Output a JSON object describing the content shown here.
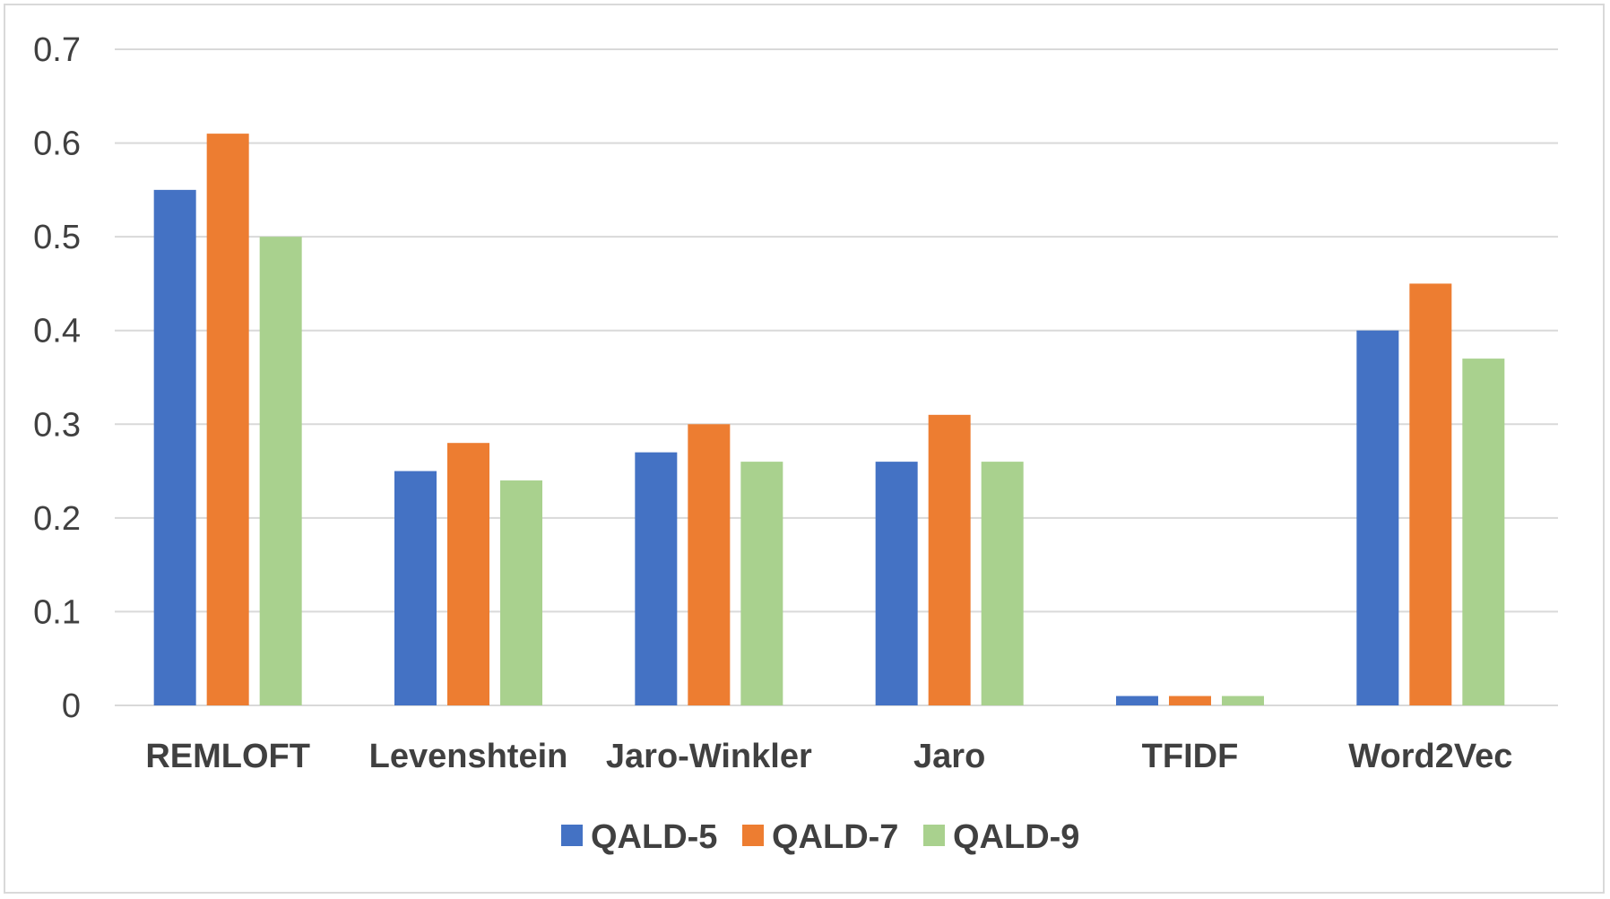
{
  "chart_data": {
    "type": "bar",
    "title": "",
    "xlabel": "",
    "ylabel": "",
    "ylim": [
      0,
      0.7
    ],
    "yticks": [
      0,
      0.1,
      0.2,
      0.3,
      0.4,
      0.5,
      0.6,
      0.7
    ],
    "ytick_labels": [
      "0",
      "0.1",
      "0.2",
      "0.3",
      "0.4",
      "0.5",
      "0.6",
      "0.7"
    ],
    "grid": true,
    "legend_position": "bottom",
    "categories": [
      "REMLOFT",
      "Levenshtein",
      "Jaro-Winkler",
      "Jaro",
      "TFIDF",
      "Word2Vec"
    ],
    "series": [
      {
        "name": "QALD-5",
        "color": "#4472c4",
        "values": [
          0.55,
          0.25,
          0.27,
          0.26,
          0.01,
          0.4
        ]
      },
      {
        "name": "QALD-7",
        "color": "#ed7d31",
        "values": [
          0.61,
          0.28,
          0.3,
          0.31,
          0.01,
          0.45
        ]
      },
      {
        "name": "QALD-9",
        "color": "#a9d18e",
        "values": [
          0.5,
          0.24,
          0.26,
          0.26,
          0.01,
          0.37
        ]
      }
    ]
  }
}
